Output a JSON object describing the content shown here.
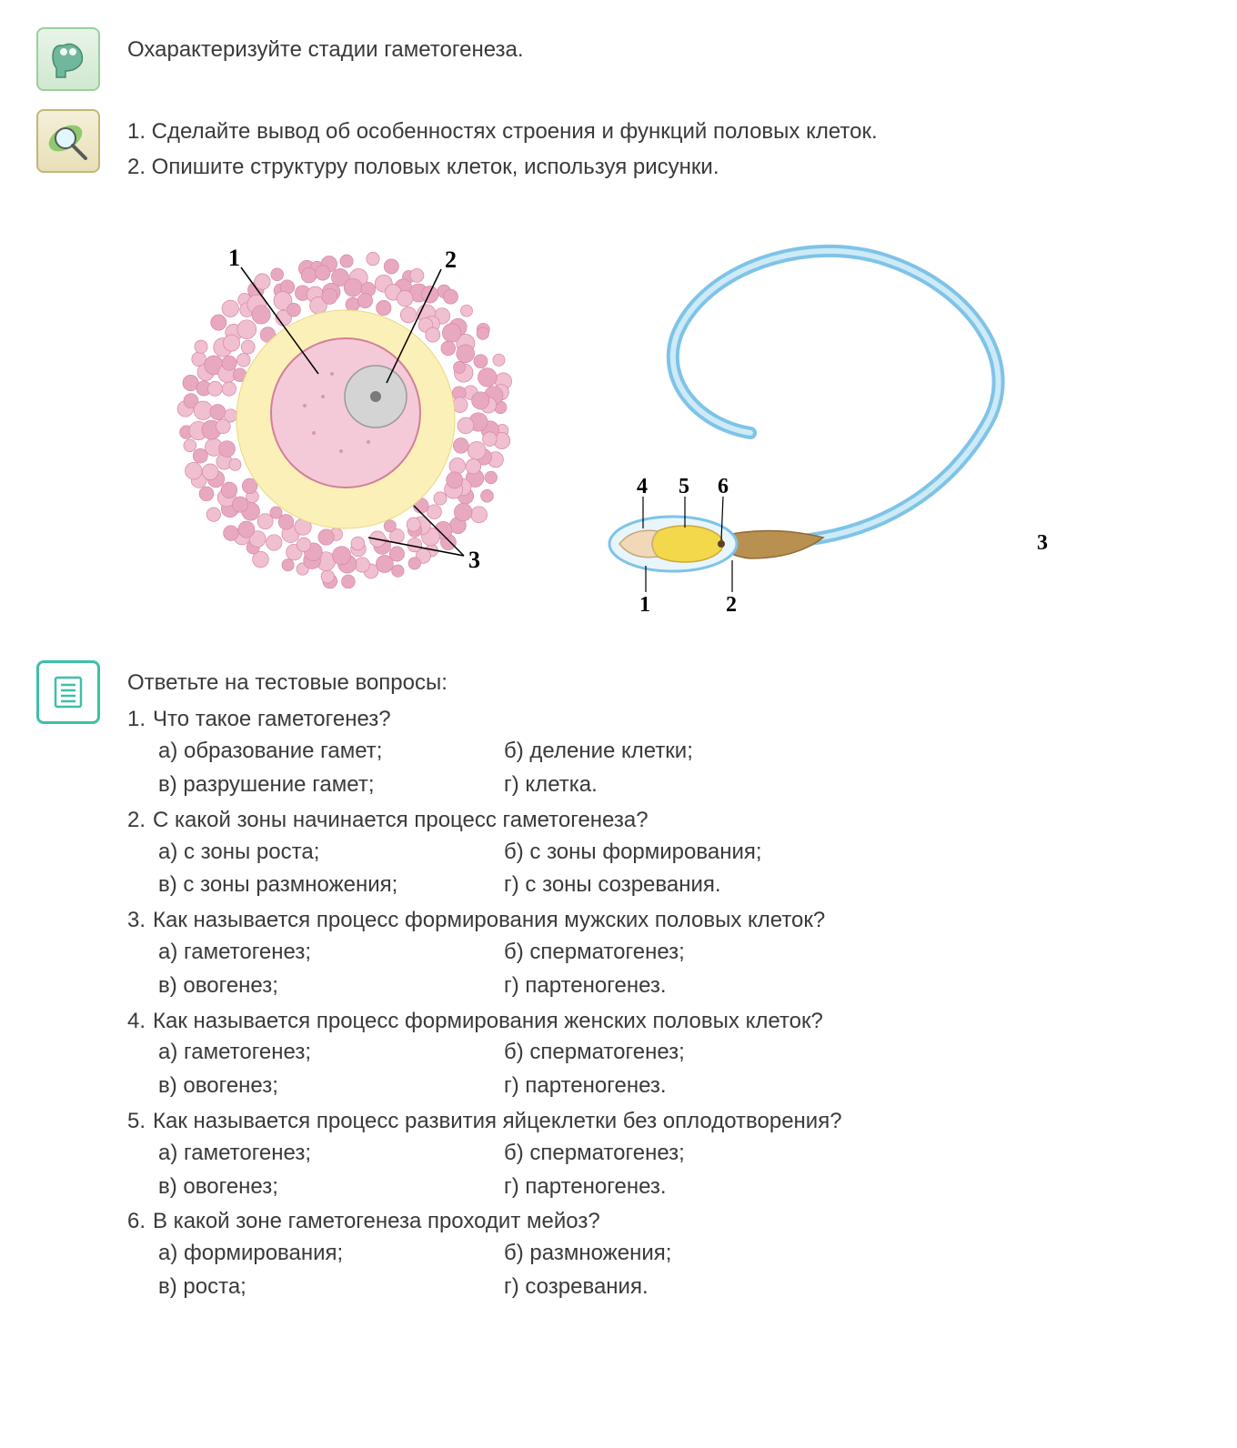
{
  "colors": {
    "text": "#3a3a3a",
    "icon_think_border": "#9bcf9b",
    "icon_observe_border": "#c0b878",
    "icon_test_border": "#3fbfa8",
    "ovum_pink": "#e8a9c0",
    "ovum_pink_light": "#f4cad8",
    "ovum_yolk": "#fbf0b8",
    "ovum_nucleus": "#bdbdbd",
    "sperm_blue": "#7ec3e8",
    "sperm_yellow": "#f2d84a",
    "sperm_brown": "#b89050"
  },
  "section1": {
    "text": "Охарактеризуйте стадии гаметогенеза."
  },
  "section2": {
    "line1": "1. Сделайте вывод об особенностях строения и функций половых клеток.",
    "line2": "2. Опишите структуру половых клеток, используя рисунки."
  },
  "ovum_labels": [
    "1",
    "2",
    "3"
  ],
  "sperm_labels": [
    "1",
    "2",
    "3",
    "4",
    "5",
    "6"
  ],
  "quiz": {
    "intro": "Ответьте на тестовые вопросы:",
    "questions": [
      {
        "num": "1.",
        "text": "Что такое гаметогенез?",
        "opts": {
          "a": "а) образование гамет;",
          "b": "б) деление клетки;",
          "v": "в) разрушение гамет;",
          "g": "г) клетка."
        }
      },
      {
        "num": "2.",
        "text": "С какой зоны начинается процесс гаметогенеза?",
        "opts": {
          "a": "а) с зоны роста;",
          "b": "б) с зоны формирования;",
          "v": "в) с зоны размножения;",
          "g": "г) с зоны созревания."
        }
      },
      {
        "num": "3.",
        "text": "Как называется процесс формирования мужских половых клеток?",
        "opts": {
          "a": "а) гаметогенез;",
          "b": "б) сперматогенез;",
          "v": "в) овогенез;",
          "g": "г) партеногенез."
        }
      },
      {
        "num": "4.",
        "text": "Как называется процесс формирования женских половых клеток?",
        "opts": {
          "a": "а) гаметогенез;",
          "b": "б) сперматогенез;",
          "v": "в) овогенез;",
          "g": "г) партеногенез."
        }
      },
      {
        "num": "5.",
        "text": "Как называется процесс развития яйцеклетки без оплодотворения?",
        "opts": {
          "a": "а) гаметогенез;",
          "b": "б) сперматогенез;",
          "v": "в) овогенез;",
          "g": "г) партеногенез."
        }
      },
      {
        "num": "6.",
        "text": "В какой зоне гаметогенеза проходит мейоз?",
        "opts": {
          "a": "а) формирования;",
          "b": "б) размножения;",
          "v": "в) роста;",
          "g": "г) созревания."
        }
      }
    ]
  }
}
